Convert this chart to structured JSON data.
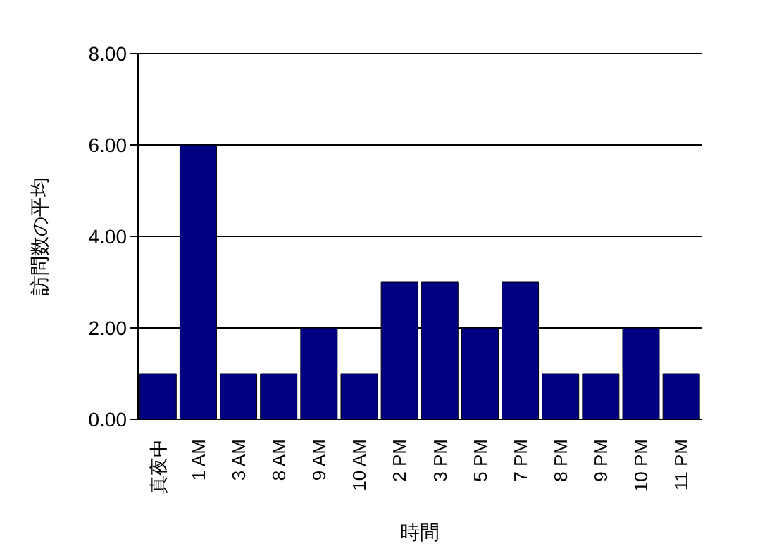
{
  "chart_data": {
    "type": "bar",
    "xlabel": "時間",
    "ylabel": "訪問数の平均",
    "categories": [
      "真夜中",
      "1 AM",
      "3 AM",
      "8 AM",
      "9 AM",
      "10 AM",
      "2 PM",
      "3 PM",
      "5 PM",
      "7 PM",
      "8 PM",
      "9 PM",
      "10 PM",
      "11 PM"
    ],
    "values": [
      1,
      6,
      1,
      1,
      2,
      1,
      3,
      3,
      2,
      3,
      1,
      1,
      2,
      1
    ],
    "color": "#000080",
    "ylim": [
      0,
      8
    ],
    "yticks": [
      {
        "value": 0,
        "label": "0.00"
      },
      {
        "value": 2,
        "label": "2.00"
      },
      {
        "value": 4,
        "label": "4.00"
      },
      {
        "value": 6,
        "label": "6.00"
      },
      {
        "value": 8,
        "label": "8.00"
      }
    ],
    "grid": "y"
  }
}
